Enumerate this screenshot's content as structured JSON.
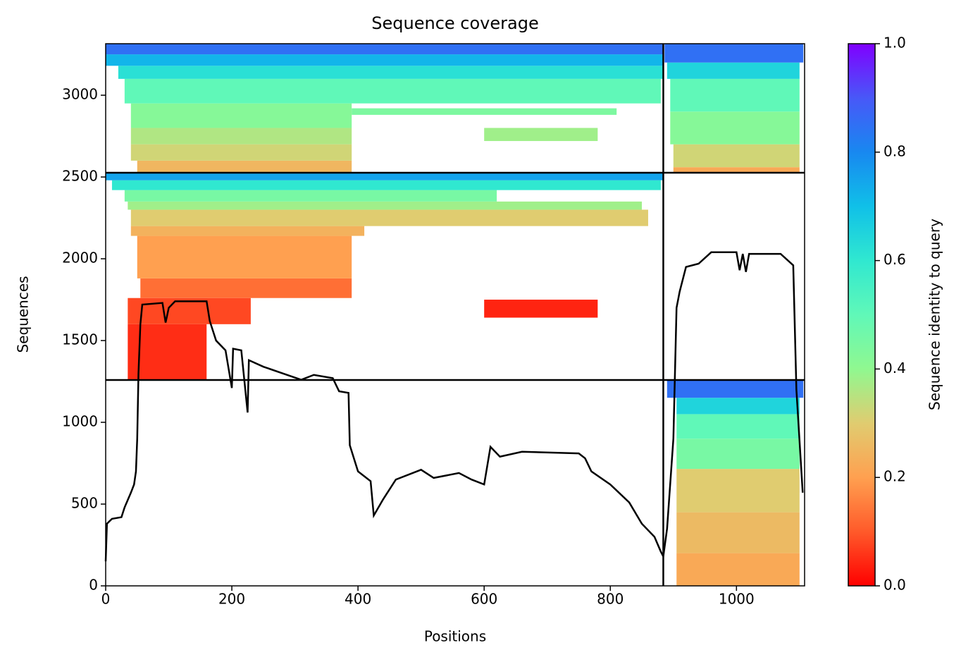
{
  "chart_data": {
    "type": "coverage",
    "title": "Sequence coverage",
    "xlabel": "Positions",
    "ylabel": "Sequences",
    "colorbar_label": "Sequence identity to query",
    "xlim": [
      0,
      1108
    ],
    "ylim": [
      0,
      3315
    ],
    "xticks": [
      0,
      200,
      400,
      600,
      800,
      1000
    ],
    "yticks": [
      0,
      500,
      1000,
      1500,
      2000,
      2500,
      3000
    ],
    "colorbar_lim": [
      0,
      1
    ],
    "colorbar_ticks": [
      {
        "value": 0,
        "label": "0.0"
      },
      {
        "value": 0.2,
        "label": "0.2"
      },
      {
        "value": 0.4,
        "label": "0.4"
      },
      {
        "value": 0.6,
        "label": "0.6"
      },
      {
        "value": 0.8,
        "label": "0.8"
      },
      {
        "value": 1,
        "label": "1.0"
      }
    ],
    "colormap": [
      "#ff0000",
      "#ff5a2a",
      "#ffa050",
      "#e0cc70",
      "#90f890",
      "#60f8b8",
      "#30e8d0",
      "#10c0e8",
      "#1888f0",
      "#4858f8",
      "#8000ff"
    ],
    "dividers_x": [
      884
    ],
    "dividers_y": [
      1259,
      2526
    ],
    "blocks": [
      {
        "x": [
          905,
          1100
        ],
        "y": [
          0,
          200
        ],
        "identity": 0.22
      },
      {
        "x": [
          905,
          1100
        ],
        "y": [
          200,
          450
        ],
        "identity": 0.26
      },
      {
        "x": [
          905,
          1100
        ],
        "y": [
          450,
          715
        ],
        "identity": 0.3
      },
      {
        "x": [
          905,
          1100
        ],
        "y": [
          715,
          900
        ],
        "identity": 0.45
      },
      {
        "x": [
          905,
          1100
        ],
        "y": [
          900,
          1050
        ],
        "identity": 0.5
      },
      {
        "x": [
          905,
          1100
        ],
        "y": [
          1050,
          1150
        ],
        "identity": 0.65
      },
      {
        "x": [
          890,
          1106
        ],
        "y": [
          1150,
          1259
        ],
        "identity": 0.85
      },
      {
        "x": [
          35,
          160
        ],
        "y": [
          1259,
          1600
        ],
        "identity": 0.05
      },
      {
        "x": [
          35,
          230
        ],
        "y": [
          1600,
          1760
        ],
        "identity": 0.08
      },
      {
        "x": [
          600,
          780
        ],
        "y": [
          1640,
          1750
        ],
        "identity": 0.04
      },
      {
        "x": [
          55,
          390
        ],
        "y": [
          1760,
          1880
        ],
        "identity": 0.13
      },
      {
        "x": [
          50,
          390
        ],
        "y": [
          1880,
          2140
        ],
        "identity": 0.2
      },
      {
        "x": [
          40,
          410
        ],
        "y": [
          2140,
          2200
        ],
        "identity": 0.24
      },
      {
        "x": [
          40,
          860
        ],
        "y": [
          2200,
          2300
        ],
        "identity": 0.3
      },
      {
        "x": [
          35,
          850
        ],
        "y": [
          2300,
          2350
        ],
        "identity": 0.38
      },
      {
        "x": [
          30,
          620
        ],
        "y": [
          2350,
          2420
        ],
        "identity": 0.45
      },
      {
        "x": [
          10,
          880
        ],
        "y": [
          2420,
          2480
        ],
        "identity": 0.6
      },
      {
        "x": [
          0,
          884
        ],
        "y": [
          2480,
          2526
        ],
        "identity": 0.75
      },
      {
        "x": [
          50,
          390
        ],
        "y": [
          2526,
          2600
        ],
        "identity": 0.25
      },
      {
        "x": [
          40,
          390
        ],
        "y": [
          2600,
          2700
        ],
        "identity": 0.32
      },
      {
        "x": [
          40,
          390
        ],
        "y": [
          2700,
          2800
        ],
        "identity": 0.36
      },
      {
        "x": [
          600,
          780
        ],
        "y": [
          2720,
          2800
        ],
        "identity": 0.38
      },
      {
        "x": [
          40,
          390
        ],
        "y": [
          2800,
          2950
        ],
        "identity": 0.42
      },
      {
        "x": [
          390,
          810
        ],
        "y": [
          2880,
          2920
        ],
        "identity": 0.44
      },
      {
        "x": [
          30,
          880
        ],
        "y": [
          2950,
          3100
        ],
        "identity": 0.5
      },
      {
        "x": [
          20,
          884
        ],
        "y": [
          3100,
          3180
        ],
        "identity": 0.62
      },
      {
        "x": [
          0,
          884
        ],
        "y": [
          3180,
          3250
        ],
        "identity": 0.72
      },
      {
        "x": [
          0,
          884
        ],
        "y": [
          3250,
          3315
        ],
        "identity": 0.85
      },
      {
        "x": [
          900,
          1100
        ],
        "y": [
          2526,
          2560
        ],
        "identity": 0.22
      },
      {
        "x": [
          900,
          1100
        ],
        "y": [
          2560,
          2700
        ],
        "identity": 0.32
      },
      {
        "x": [
          895,
          1100
        ],
        "y": [
          2700,
          2900
        ],
        "identity": 0.42
      },
      {
        "x": [
          895,
          1100
        ],
        "y": [
          2900,
          3100
        ],
        "identity": 0.5
      },
      {
        "x": [
          890,
          1100
        ],
        "y": [
          3100,
          3200
        ],
        "identity": 0.65
      },
      {
        "x": [
          886,
          1106
        ],
        "y": [
          3200,
          3315
        ],
        "identity": 0.85
      }
    ],
    "coverage_color": "#000000",
    "coverage_x": [
      0,
      2,
      10,
      25,
      30,
      40,
      45,
      48,
      50,
      52,
      55,
      58,
      90,
      95,
      100,
      110,
      160,
      165,
      175,
      190,
      200,
      202,
      215,
      225,
      227,
      250,
      280,
      310,
      330,
      360,
      370,
      385,
      387,
      400,
      420,
      425,
      440,
      460,
      500,
      520,
      560,
      580,
      600,
      610,
      625,
      660,
      750,
      760,
      770,
      800,
      830,
      850,
      870,
      880,
      884,
      890,
      900,
      905,
      910,
      920,
      940,
      960,
      1000,
      1005,
      1010,
      1015,
      1020,
      1070,
      1090,
      1095,
      1105
    ],
    "coverage": [
      150,
      380,
      410,
      420,
      480,
      570,
      620,
      700,
      900,
      1300,
      1600,
      1720,
      1730,
      1610,
      1700,
      1740,
      1740,
      1620,
      1500,
      1440,
      1210,
      1450,
      1440,
      1060,
      1380,
      1340,
      1300,
      1260,
      1290,
      1270,
      1190,
      1180,
      860,
      700,
      640,
      430,
      530,
      650,
      710,
      660,
      690,
      650,
      620,
      850,
      790,
      820,
      810,
      780,
      700,
      620,
      510,
      380,
      300,
      210,
      180,
      350,
      900,
      1700,
      1800,
      1950,
      1970,
      2040,
      2040,
      1930,
      2030,
      1920,
      2030,
      2030,
      1960,
      1200,
      570
    ]
  }
}
